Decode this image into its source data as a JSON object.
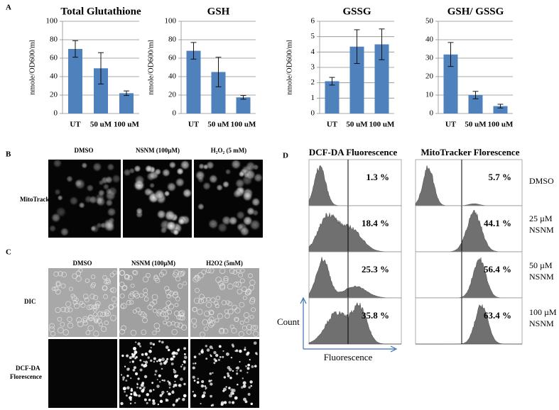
{
  "chart_data": [
    {
      "type": "bar",
      "title": "Total Glutathione",
      "y_label": "nmole/OD600/ml",
      "categories": [
        "UT",
        "50 uM",
        "100 uM"
      ],
      "values": [
        70,
        49,
        22
      ],
      "errors": [
        9,
        17,
        2.5
      ],
      "ylim": [
        0,
        100
      ],
      "yticks": [
        0,
        20,
        40,
        60,
        80,
        100
      ],
      "color": "#4f81bd",
      "grid": true
    },
    {
      "type": "bar",
      "title": "GSH",
      "y_label": "nmole/OD600/ml",
      "categories": [
        "UT",
        "50 uM",
        "100 uM"
      ],
      "values": [
        68,
        45,
        17.5
      ],
      "errors": [
        9,
        16,
        2
      ],
      "ylim": [
        0,
        100
      ],
      "yticks": [
        0,
        20,
        40,
        60,
        80,
        100
      ],
      "color": "#4f81bd",
      "grid": true
    },
    {
      "type": "bar",
      "title": "GSSG",
      "y_label": "nmole/OD600/ml",
      "categories": [
        "UT",
        "50 uM",
        "100 uM"
      ],
      "values": [
        2.1,
        4.35,
        4.5
      ],
      "errors": [
        0.25,
        1.1,
        1
      ],
      "ylim": [
        0,
        6
      ],
      "yticks": [
        0,
        1,
        2,
        3,
        4,
        5,
        6
      ],
      "color": "#4f81bd",
      "grid": true
    },
    {
      "type": "bar",
      "title": "GSH/ GSSG",
      "categories": [
        "UT",
        "50 uM",
        "100 uM"
      ],
      "values": [
        32,
        10,
        4
      ],
      "errors": [
        6.5,
        2,
        1
      ],
      "ylim": [
        0,
        50
      ],
      "yticks": [
        0,
        10,
        20,
        30,
        40,
        50
      ],
      "color": "#4f81bd",
      "grid": true
    }
  ],
  "panel_labels": [
    "A",
    "B",
    "C",
    "D"
  ],
  "panel_b": {
    "columns": [
      "DMSO",
      "NSNM (100µM)",
      "H₂O₂ (5 mM)"
    ],
    "row": "MitoTracker"
  },
  "panel_c": {
    "columns": [
      "DMSO",
      "NSNM (100µM)",
      "H2O2 (5mM)"
    ],
    "rows": [
      [
        "DIC"
      ],
      [
        "DCF-DA",
        "Florescence"
      ]
    ]
  },
  "panel_d": {
    "columns": [
      "DCF-DA Fluorescence",
      "MitoTracker Florescence"
    ],
    "rows": [
      [
        "DMSO"
      ],
      [
        "25 µM",
        "NSNM"
      ],
      [
        "50 µM",
        "NSNM"
      ],
      [
        "100 µM",
        "NSNM"
      ]
    ],
    "percents": [
      [
        "1.3 %",
        "5.7 %"
      ],
      [
        "18.4 %",
        "44.1 %"
      ],
      [
        "25.3 %",
        "56.4 %"
      ],
      [
        "35.8 %",
        "63.4 %"
      ]
    ],
    "y_axis": "Count",
    "x_axis": "Fluorescence"
  }
}
